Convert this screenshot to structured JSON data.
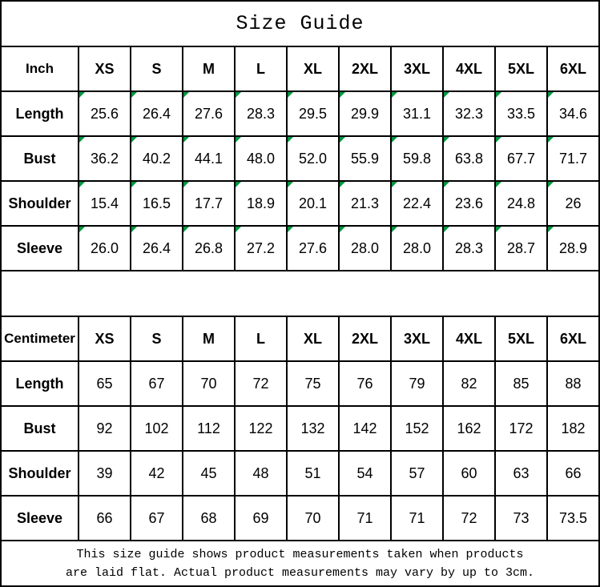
{
  "page": {
    "title": "Size Guide",
    "footer_line1": "This size guide shows product measurements taken when products",
    "footer_line2": "are laid flat. Actual product measurements may vary by up to 3cm."
  },
  "colors": {
    "border": "#000000",
    "background": "#ffffff",
    "text": "#000000",
    "flag_green": "#009640"
  },
  "inch_table": {
    "unit_label": "Inch",
    "sizes": [
      "XS",
      "S",
      "M",
      "L",
      "XL",
      "2XL",
      "3XL",
      "4XL",
      "5XL",
      "6XL"
    ],
    "rows": [
      {
        "label": "Length",
        "values": [
          "25.6",
          "26.4",
          "27.6",
          "28.3",
          "29.5",
          "29.9",
          "31.1",
          "32.3",
          "33.5",
          "34.6"
        ]
      },
      {
        "label": "Bust",
        "values": [
          "36.2",
          "40.2",
          "44.1",
          "48.0",
          "52.0",
          "55.9",
          "59.8",
          "63.8",
          "67.7",
          "71.7"
        ]
      },
      {
        "label": "Shoulder",
        "values": [
          "15.4",
          "16.5",
          "17.7",
          "18.9",
          "20.1",
          "21.3",
          "22.4",
          "23.6",
          "24.8",
          "26"
        ]
      },
      {
        "label": "Sleeve",
        "values": [
          "26.0",
          "26.4",
          "26.8",
          "27.2",
          "27.6",
          "28.0",
          "28.0",
          "28.3",
          "28.7",
          "28.9"
        ]
      }
    ],
    "value_cells_flagged": true
  },
  "cm_table": {
    "unit_label": "Centimeter",
    "sizes": [
      "XS",
      "S",
      "M",
      "L",
      "XL",
      "2XL",
      "3XL",
      "4XL",
      "5XL",
      "6XL"
    ],
    "rows": [
      {
        "label": "Length",
        "values": [
          "65",
          "67",
          "70",
          "72",
          "75",
          "76",
          "79",
          "82",
          "85",
          "88"
        ]
      },
      {
        "label": "Bust",
        "values": [
          "92",
          "102",
          "112",
          "122",
          "132",
          "142",
          "152",
          "162",
          "172",
          "182"
        ]
      },
      {
        "label": "Shoulder",
        "values": [
          "39",
          "42",
          "45",
          "48",
          "51",
          "54",
          "57",
          "60",
          "63",
          "66"
        ]
      },
      {
        "label": "Sleeve",
        "values": [
          "66",
          "67",
          "68",
          "69",
          "70",
          "71",
          "71",
          "72",
          "73",
          "73.5"
        ]
      }
    ],
    "value_cells_flagged": false
  }
}
